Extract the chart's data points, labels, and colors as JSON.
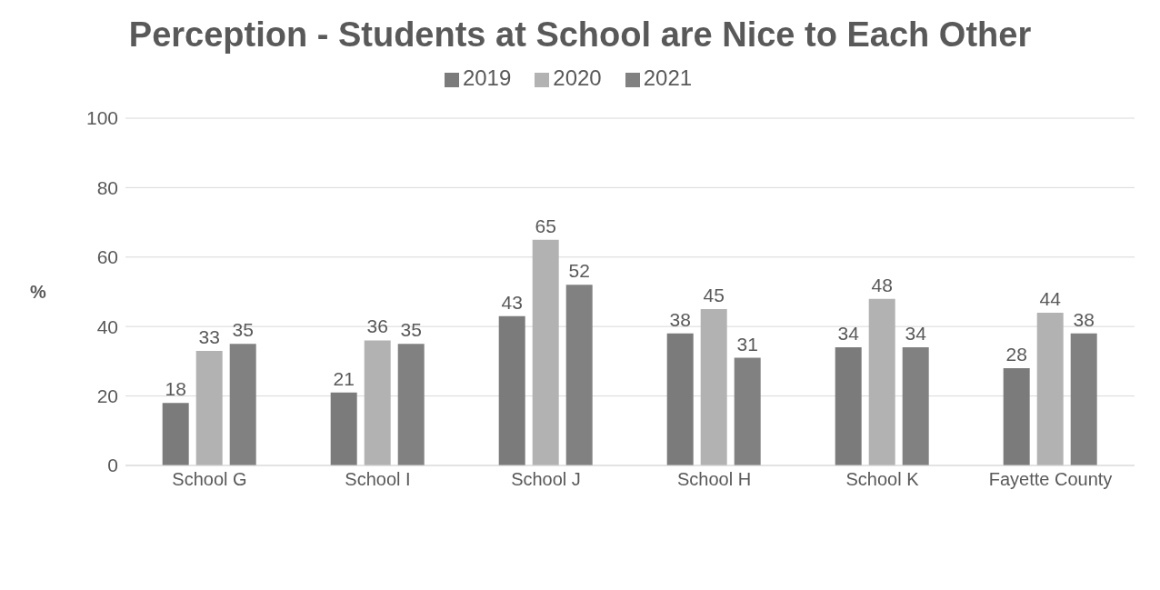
{
  "chart_data": {
    "type": "bar",
    "title": "Perception - Students at School are Nice to Each Other",
    "ylabel": "%",
    "categories": [
      "School G",
      "School I",
      "School J",
      "School H",
      "School K",
      "Fayette County"
    ],
    "series": [
      {
        "name": "2019",
        "color": "#7b7b7b",
        "values": [
          18,
          21,
          43,
          38,
          34,
          28
        ]
      },
      {
        "name": "2020",
        "color": "#b2b2b2",
        "values": [
          33,
          36,
          65,
          45,
          48,
          44
        ]
      },
      {
        "name": "2021",
        "color": "#818181",
        "values": [
          35,
          35,
          52,
          31,
          34,
          38
        ]
      }
    ],
    "ylim": [
      0,
      100
    ],
    "yticks": [
      0,
      20,
      40,
      60,
      80,
      100
    ],
    "grid": "y",
    "legend": "top",
    "data_labels": true
  }
}
